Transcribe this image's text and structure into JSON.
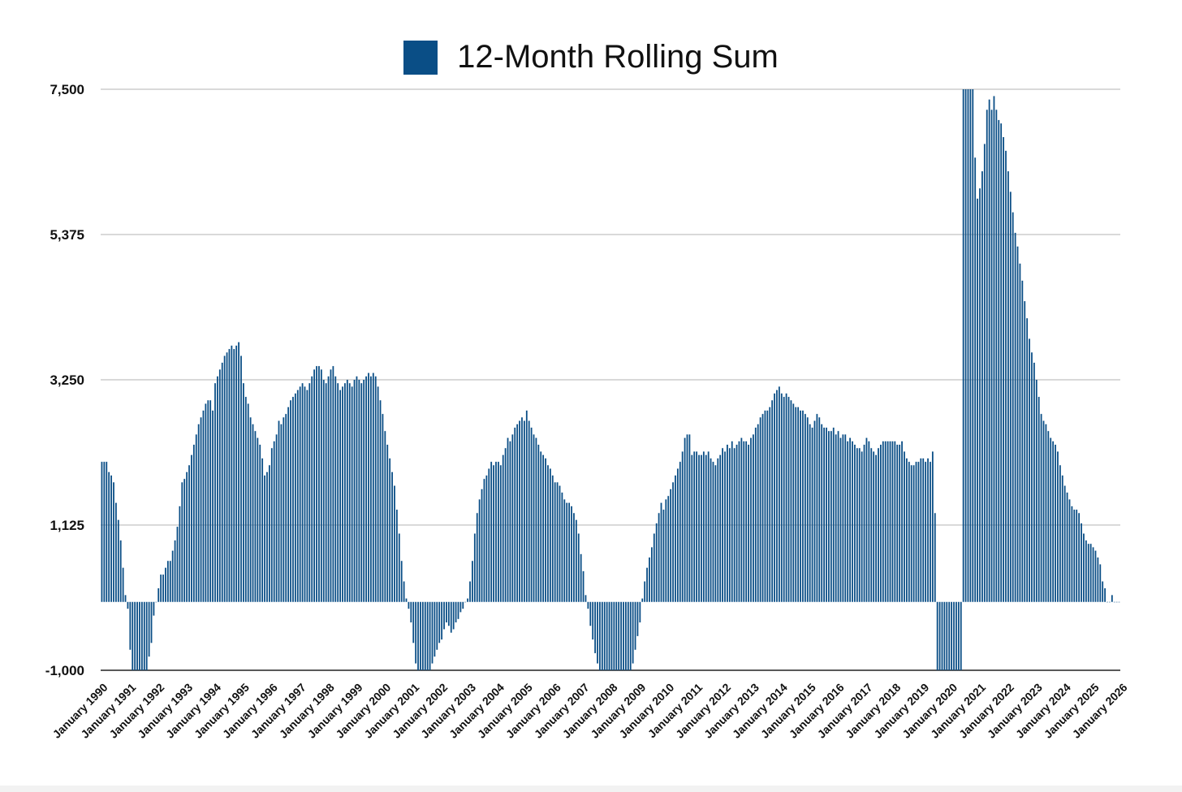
{
  "colors": {
    "bar": "#0a4e86",
    "grid": "#b3b3b3",
    "axis": "#222222"
  },
  "chart_data": {
    "type": "bar",
    "title": "",
    "xlabel": "",
    "ylabel": "",
    "legend": {
      "position": "top",
      "entries": [
        "12-Month Rolling Sum"
      ]
    },
    "grid": true,
    "ylim": [
      -1000,
      7500
    ],
    "yticks": [
      -1000,
      1125,
      3250,
      5375,
      7500
    ],
    "ytick_labels": [
      "-1,000",
      "1,125",
      "3,250",
      "5,375",
      "7,500"
    ],
    "xtick_labels": [
      "January 1990",
      "January 1991",
      "January 1992",
      "January 1993",
      "January 1994",
      "January 1995",
      "January 1996",
      "January 1997",
      "January 1998",
      "January 1999",
      "January 2000",
      "January 2001",
      "January 2002",
      "January 2003",
      "January 2004",
      "January 2005",
      "January 2006",
      "January 2007",
      "January 2008",
      "January 2009",
      "January 2010",
      "January 2011",
      "January 2012",
      "January 2013",
      "January 2014",
      "January 2015",
      "January 2016",
      "January 2017",
      "January 2018",
      "January 2019",
      "January 2020",
      "January 2021",
      "January 2022",
      "January 2023",
      "January 2024",
      "January 2025",
      "January 2026"
    ],
    "x_start": "January 1990",
    "x_step": "1 month",
    "series": [
      {
        "name": "12-Month Rolling Sum",
        "values": [
          2050,
          2050,
          2050,
          1900,
          1850,
          1750,
          1450,
          1200,
          900,
          500,
          100,
          -100,
          -700,
          -1000,
          -1000,
          -1000,
          -1000,
          -1000,
          -1000,
          -1000,
          -800,
          -600,
          -200,
          0,
          200,
          400,
          400,
          500,
          600,
          600,
          750,
          900,
          1100,
          1400,
          1750,
          1800,
          1900,
          2000,
          2150,
          2300,
          2450,
          2600,
          2700,
          2800,
          2900,
          2950,
          2950,
          2800,
          3200,
          3300,
          3400,
          3500,
          3600,
          3650,
          3700,
          3750,
          3700,
          3750,
          3800,
          3600,
          3200,
          3000,
          2900,
          2700,
          2600,
          2500,
          2400,
          2300,
          2100,
          1850,
          1900,
          2000,
          2250,
          2350,
          2450,
          2650,
          2600,
          2700,
          2750,
          2850,
          2950,
          3000,
          3050,
          3100,
          3150,
          3200,
          3150,
          3100,
          3200,
          3300,
          3400,
          3450,
          3450,
          3400,
          3250,
          3200,
          3300,
          3400,
          3450,
          3300,
          3200,
          3100,
          3150,
          3200,
          3250,
          3200,
          3150,
          3250,
          3300,
          3250,
          3200,
          3250,
          3300,
          3350,
          3300,
          3350,
          3300,
          3150,
          2950,
          2750,
          2500,
          2300,
          2100,
          1900,
          1700,
          1350,
          1000,
          600,
          300,
          50,
          -100,
          -300,
          -600,
          -900,
          -1000,
          -1000,
          -1000,
          -1000,
          -1000,
          -1000,
          -900,
          -800,
          -700,
          -600,
          -550,
          -400,
          -300,
          -350,
          -450,
          -400,
          -300,
          -250,
          -150,
          -100,
          0,
          50,
          300,
          600,
          1000,
          1300,
          1500,
          1650,
          1800,
          1850,
          1950,
          2050,
          2000,
          2050,
          2050,
          2000,
          2150,
          2250,
          2400,
          2350,
          2450,
          2550,
          2600,
          2650,
          2700,
          2650,
          2800,
          2650,
          2550,
          2450,
          2400,
          2300,
          2200,
          2150,
          2100,
          2000,
          1950,
          1850,
          1750,
          1750,
          1700,
          1600,
          1500,
          1450,
          1450,
          1400,
          1300,
          1200,
          1000,
          700,
          450,
          100,
          -100,
          -350,
          -550,
          -750,
          -900,
          -1000,
          -1000,
          -1000,
          -1000,
          -1000,
          -1000,
          -1000,
          -1000,
          -1000,
          -1000,
          -1000,
          -1000,
          -1000,
          -1000,
          -900,
          -700,
          -500,
          -300,
          50,
          300,
          500,
          650,
          800,
          1000,
          1150,
          1300,
          1450,
          1350,
          1500,
          1550,
          1650,
          1750,
          1850,
          1950,
          2050,
          2200,
          2400,
          2450,
          2450,
          2150,
          2200,
          2200,
          2150,
          2150,
          2200,
          2150,
          2200,
          2100,
          2050,
          2000,
          2100,
          2150,
          2250,
          2200,
          2300,
          2250,
          2350,
          2250,
          2300,
          2350,
          2400,
          2350,
          2350,
          2300,
          2400,
          2450,
          2550,
          2600,
          2700,
          2750,
          2800,
          2800,
          2850,
          2950,
          3050,
          3100,
          3150,
          3050,
          3000,
          3050,
          3000,
          2950,
          2900,
          2850,
          2850,
          2800,
          2800,
          2750,
          2700,
          2600,
          2550,
          2650,
          2750,
          2700,
          2600,
          2550,
          2550,
          2500,
          2500,
          2550,
          2450,
          2500,
          2400,
          2450,
          2450,
          2350,
          2400,
          2350,
          2300,
          2250,
          2250,
          2200,
          2300,
          2400,
          2350,
          2250,
          2200,
          2150,
          2250,
          2300,
          2350,
          2350,
          2350,
          2350,
          2350,
          2350,
          2300,
          2300,
          2350,
          2200,
          2100,
          2050,
          2000,
          2000,
          2050,
          2050,
          2100,
          2100,
          2050,
          2100,
          2050,
          2200,
          1300,
          -1000,
          -1000,
          -1000,
          -1000,
          -1000,
          -1000,
          -1000,
          -1000,
          -1000,
          -1000,
          -1000,
          7500,
          7500,
          7500,
          7500,
          7500,
          6500,
          5900,
          6050,
          6300,
          6700,
          7200,
          7350,
          7200,
          7400,
          7200,
          7050,
          7000,
          6800,
          6600,
          6300,
          6000,
          5700,
          5400,
          5200,
          4950,
          4700,
          4400,
          4150,
          3850,
          3650,
          3500,
          3250,
          3000,
          2750,
          2650,
          2600,
          2500,
          2400,
          2350,
          2300,
          2200,
          2000,
          1850,
          1700,
          1600,
          1500,
          1400,
          1350,
          1350,
          1300,
          1150,
          1000,
          900,
          850,
          850,
          800,
          750,
          650,
          550,
          300,
          200,
          0,
          0,
          100,
          0,
          0,
          0
        ]
      }
    ]
  }
}
